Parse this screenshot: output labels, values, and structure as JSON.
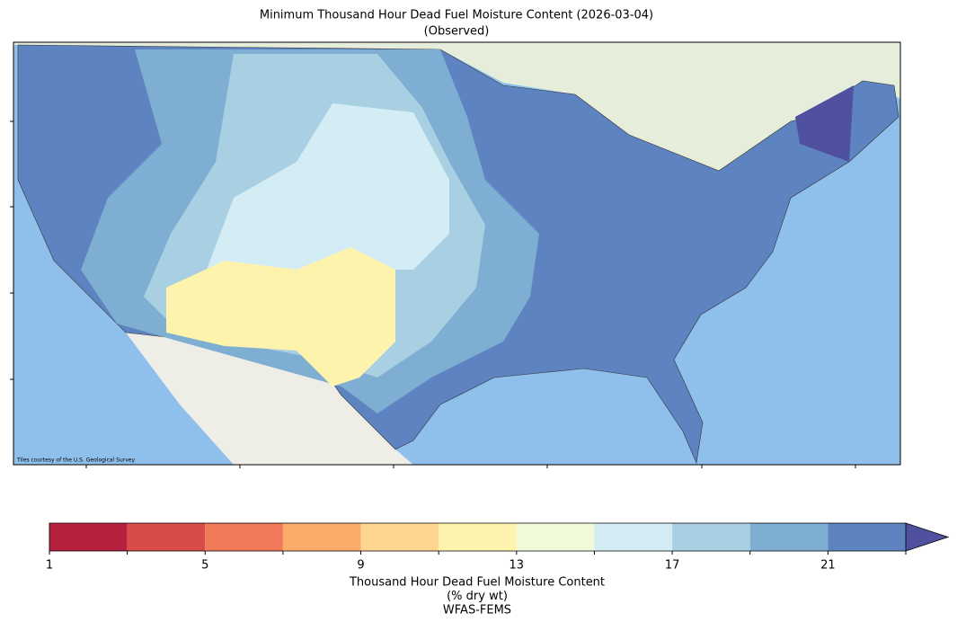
{
  "title": "Minimum Thousand Hour Dead Fuel Moisture Content (2026-03-04)",
  "subtitle": "(Observed)",
  "map": {
    "attribution": "Tiles courtesy of the U.S. Geological Survey"
  },
  "colorbar": {
    "bounds": [
      1,
      3,
      5,
      7,
      9,
      11,
      13,
      15,
      17,
      19,
      21,
      23
    ],
    "colors": [
      "#b5213f",
      "#d94b46",
      "#f07a5a",
      "#fbab6a",
      "#fed690",
      "#fef3ad",
      "#f1f9db",
      "#d4ecf3",
      "#a8d0e2",
      "#7eaed2",
      "#5d84c0"
    ],
    "extend": "max",
    "extend_color": "#5050a0",
    "ticks": [
      1,
      5,
      9,
      13,
      17,
      21
    ],
    "label_lines": [
      "Thousand Hour Dead Fuel Moisture Content",
      "(% dry wt)",
      "WFAS-FEMS"
    ]
  }
}
